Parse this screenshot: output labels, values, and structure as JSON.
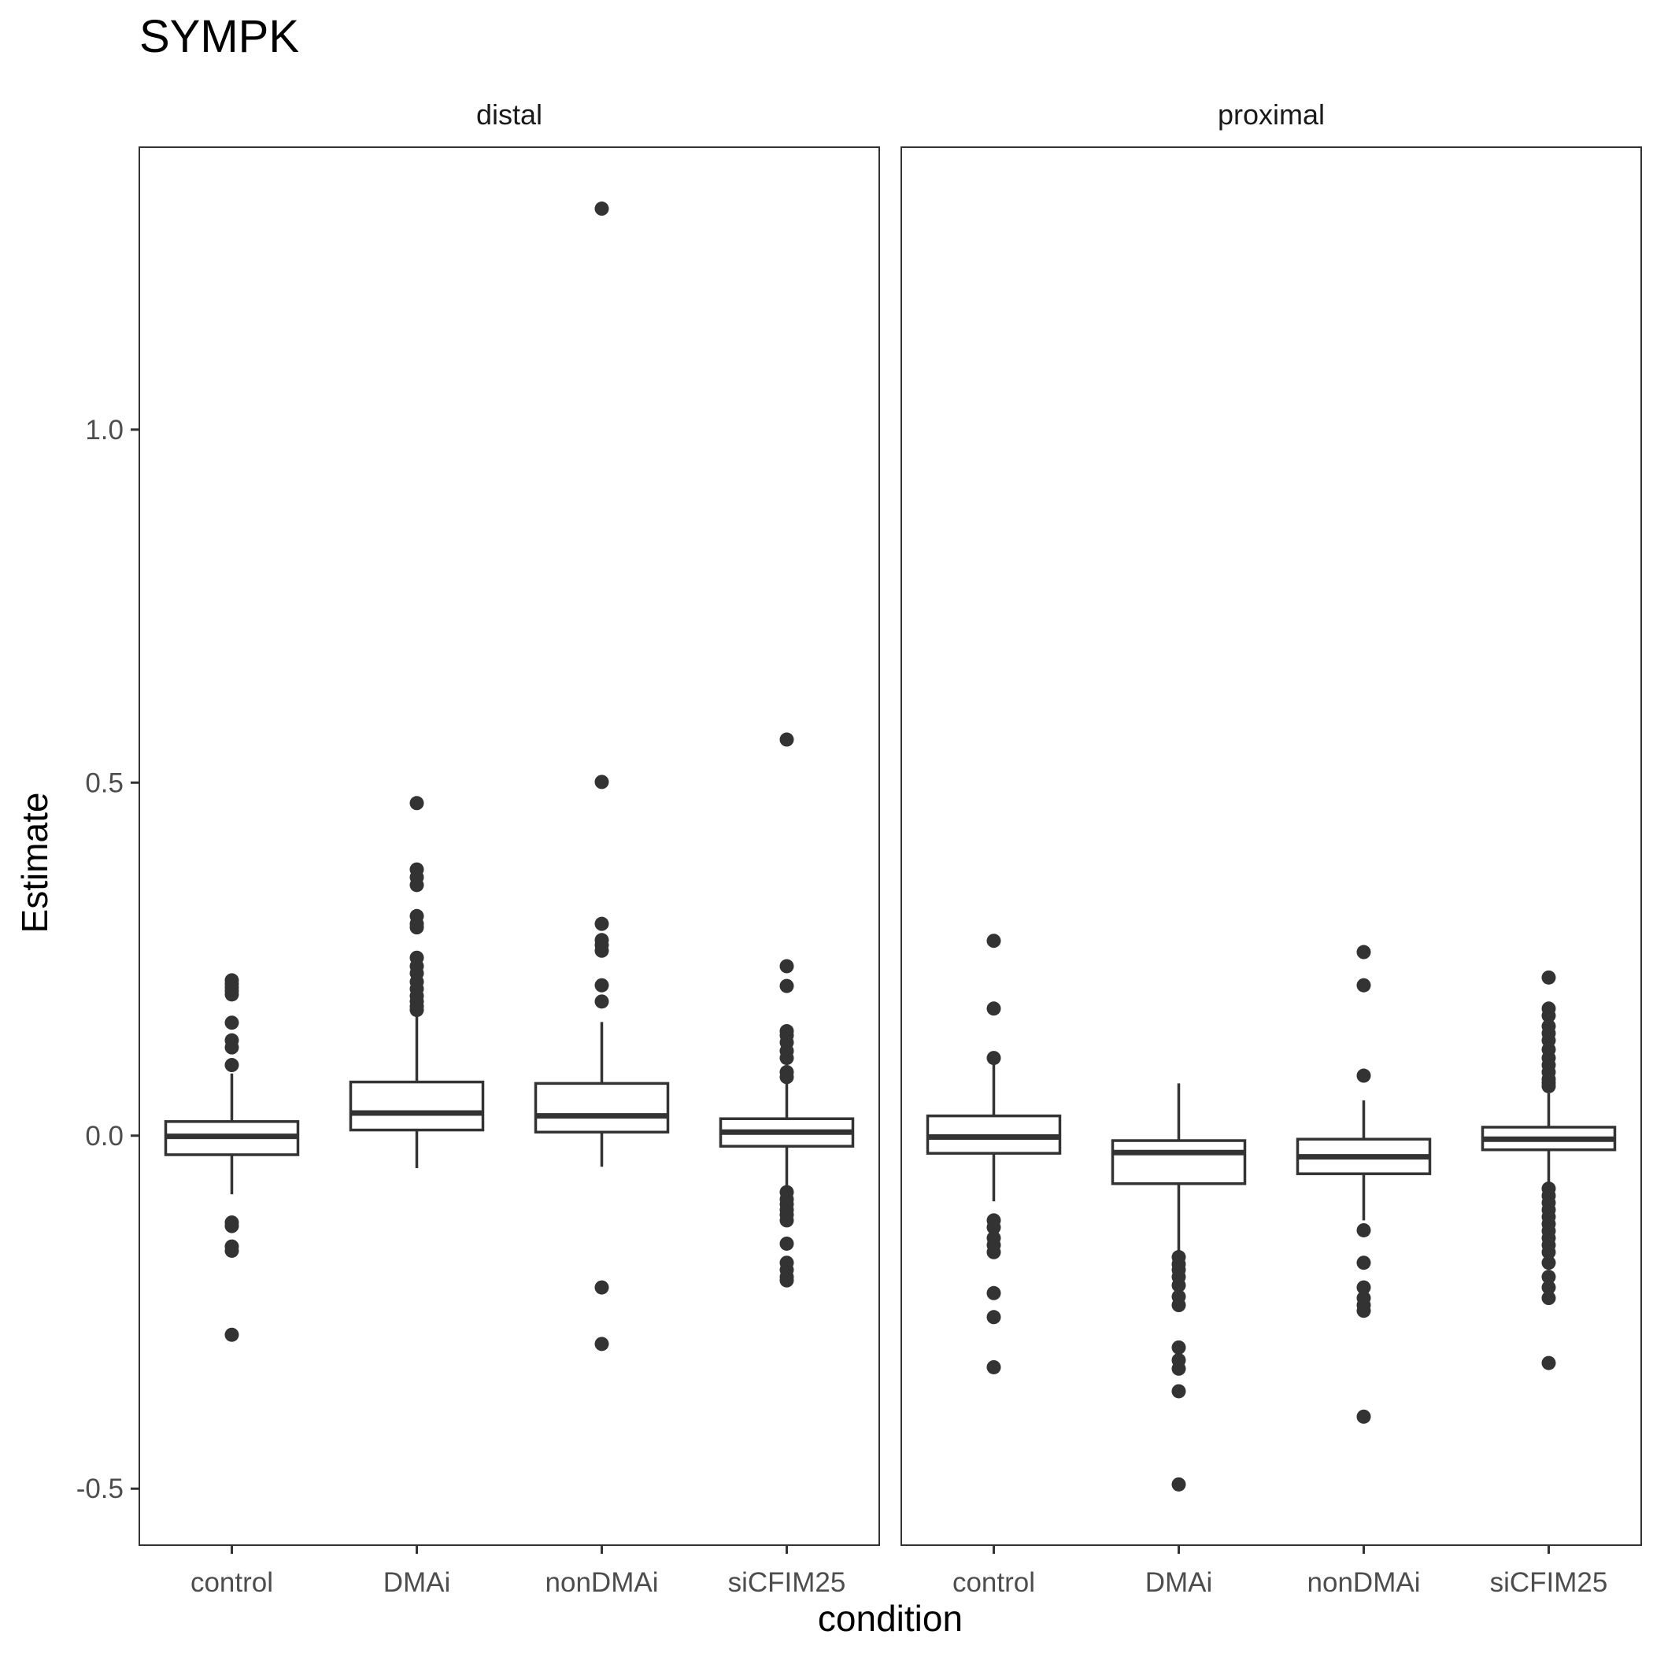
{
  "chart_data": {
    "type": "boxplot",
    "title": "SYMPK",
    "xlabel": "condition",
    "ylabel": "Estimate",
    "ylim": [
      -0.58,
      1.4
    ],
    "yticks": [
      -0.5,
      0.0,
      0.5,
      1.0
    ],
    "ytick_labels": [
      "-0.5",
      "0.0",
      "0.5",
      "1.0"
    ],
    "categories": [
      "control",
      "DMAi",
      "nonDMAi",
      "siCFIM25"
    ],
    "grid": false,
    "facets": [
      {
        "name": "distal",
        "boxes": [
          {
            "category": "control",
            "q1": -0.027,
            "median": -0.001,
            "q3": 0.02,
            "whisker_low": -0.083,
            "whisker_high": 0.088,
            "outliers": [
              0.22,
              0.215,
              0.21,
              0.205,
              0.2,
              0.16,
              0.135,
              0.125,
              0.1,
              -0.123,
              -0.128,
              -0.157,
              -0.163,
              -0.282
            ]
          },
          {
            "category": "DMAi",
            "q1": 0.008,
            "median": 0.032,
            "q3": 0.076,
            "whisker_low": -0.046,
            "whisker_high": 0.172,
            "outliers": [
              0.471,
              0.377,
              0.366,
              0.355,
              0.311,
              0.3,
              0.295,
              0.252,
              0.24,
              0.23,
              0.218,
              0.208,
              0.198,
              0.19,
              0.183,
              0.178
            ]
          },
          {
            "category": "nonDMAi",
            "q1": 0.005,
            "median": 0.028,
            "q3": 0.074,
            "whisker_low": -0.044,
            "whisker_high": 0.161,
            "outliers": [
              1.313,
              0.501,
              0.3,
              0.277,
              0.27,
              0.262,
              0.213,
              0.19,
              -0.215,
              -0.295
            ]
          },
          {
            "category": "siCFIM25",
            "q1": -0.015,
            "median": 0.005,
            "q3": 0.024,
            "whisker_low": -0.075,
            "whisker_high": 0.087,
            "outliers": [
              0.561,
              0.24,
              0.212,
              0.148,
              0.142,
              0.132,
              0.12,
              0.11,
              0.09,
              0.083,
              -0.08,
              -0.09,
              -0.097,
              -0.105,
              -0.112,
              -0.12,
              -0.153,
              -0.18,
              -0.19,
              -0.2,
              -0.205
            ]
          }
        ]
      },
      {
        "name": "proximal",
        "boxes": [
          {
            "category": "control",
            "q1": -0.025,
            "median": -0.002,
            "q3": 0.028,
            "whisker_low": -0.093,
            "whisker_high": 0.105,
            "outliers": [
              0.276,
              0.18,
              0.11,
              -0.12,
              -0.13,
              -0.145,
              -0.155,
              -0.165,
              -0.223,
              -0.257,
              -0.328
            ]
          },
          {
            "category": "DMAi",
            "q1": -0.068,
            "median": -0.024,
            "q3": -0.007,
            "whisker_low": -0.165,
            "whisker_high": 0.074,
            "outliers": [
              -0.172,
              -0.182,
              -0.19,
              -0.2,
              -0.212,
              -0.228,
              -0.24,
              -0.3,
              -0.318,
              -0.33,
              -0.362,
              -0.494
            ]
          },
          {
            "category": "nonDMAi",
            "q1": -0.054,
            "median": -0.03,
            "q3": -0.005,
            "whisker_low": -0.12,
            "whisker_high": 0.05,
            "outliers": [
              0.26,
              0.213,
              0.085,
              -0.134,
              -0.18,
              -0.215,
              -0.23,
              -0.24,
              -0.248,
              -0.398
            ]
          },
          {
            "category": "siCFIM25",
            "q1": -0.02,
            "median": -0.005,
            "q3": 0.012,
            "whisker_low": -0.07,
            "whisker_high": 0.06,
            "outliers": [
              0.224,
              0.18,
              0.17,
              0.155,
              0.145,
              0.135,
              0.122,
              0.11,
              0.1,
              0.09,
              0.08,
              0.075,
              0.07,
              -0.075,
              -0.085,
              -0.095,
              -0.105,
              -0.115,
              -0.125,
              -0.135,
              -0.145,
              -0.155,
              -0.165,
              -0.18,
              -0.2,
              -0.215,
              -0.23,
              -0.322
            ]
          }
        ]
      }
    ]
  }
}
